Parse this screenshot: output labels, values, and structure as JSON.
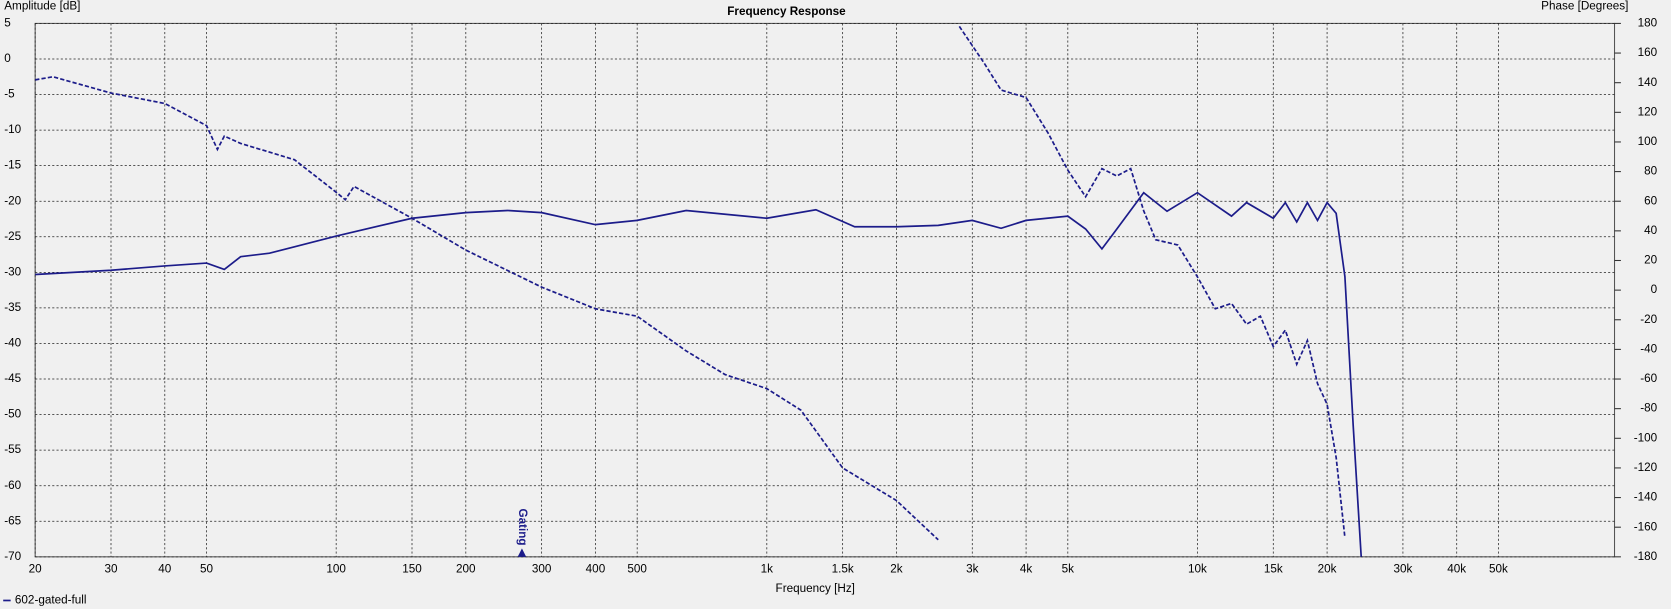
{
  "chart_data": {
    "type": "line",
    "title": "Frequency Response",
    "ylabel": "Amplitude [dB]",
    "y2label": "Phase [Degrees]",
    "xlabel": "Frequency [Hz]",
    "xscale": "log",
    "grid": true,
    "xlim": [
      20,
      93000
    ],
    "ylim": [
      -70,
      5
    ],
    "y2lim": [
      -180,
      180
    ],
    "xticks": [
      20,
      30,
      40,
      50,
      100,
      150,
      200,
      300,
      400,
      500,
      {
        "value": 1000,
        "label": "1k"
      },
      {
        "value": 1500,
        "label": "1.5k"
      },
      {
        "value": 2000,
        "label": "2k"
      },
      {
        "value": 3000,
        "label": "3k"
      },
      {
        "value": 4000,
        "label": "4k"
      },
      {
        "value": 5000,
        "label": "5k"
      },
      {
        "value": 10000,
        "label": "10k"
      },
      {
        "value": 15000,
        "label": "15k"
      },
      {
        "value": 20000,
        "label": "20k"
      },
      {
        "value": 30000,
        "label": "30k"
      },
      {
        "value": 40000,
        "label": "40k"
      },
      {
        "value": 50000,
        "label": "50k"
      }
    ],
    "yticks": [
      5,
      0,
      -5,
      -10,
      -15,
      -20,
      -25,
      -30,
      -35,
      -40,
      -45,
      -50,
      -55,
      -60,
      -65,
      -70
    ],
    "y2ticks": [
      180,
      160,
      140,
      120,
      100,
      80,
      60,
      40,
      20,
      0,
      -20,
      -40,
      -60,
      -80,
      -100,
      -120,
      -140,
      -160,
      -180
    ],
    "annotations": [
      {
        "text": "Gating",
        "x": 270
      }
    ],
    "series": [
      {
        "name": "602-gated-full",
        "color": "#1c1c8a",
        "style": "solid",
        "x": [
          20,
          30,
          40,
          50,
          55,
          60,
          70,
          80,
          100,
          150,
          200,
          250,
          300,
          400,
          500,
          650,
          1000,
          1300,
          1600,
          2000,
          2500,
          3000,
          3500,
          4000,
          5000,
          5500,
          6000,
          6500,
          7500,
          8500,
          10000,
          12000,
          13000,
          15000,
          16000,
          17000,
          18000,
          19000,
          20000,
          21000,
          22000,
          23000,
          24000
        ],
        "values": [
          -30.3,
          -29.7,
          -29.1,
          -28.7,
          -29.6,
          -27.8,
          -27.3,
          -26.4,
          -24.9,
          -22.4,
          -21.6,
          -21.3,
          -21.6,
          -23.3,
          -22.7,
          -21.3,
          -22.4,
          -21.2,
          -23.6,
          -23.6,
          -23.4,
          -22.7,
          -23.8,
          -22.7,
          -22.1,
          -23.9,
          -26.7,
          -23.9,
          -18.8,
          -21.4,
          -18.8,
          -22.1,
          -20.2,
          -22.4,
          -20.2,
          -22.9,
          -20.2,
          -22.7,
          -20.2,
          -21.7,
          -30.6,
          -51.6,
          -70
        ]
      },
      {
        "color": "#1c1c8a",
        "style": "dashed",
        "axis": "y2",
        "x": [
          20,
          22,
          30,
          40,
          50,
          53,
          55,
          60,
          80,
          100,
          105,
          110,
          150,
          200,
          300,
          400,
          500,
          650,
          800,
          1000,
          1200,
          1500,
          2000,
          2500,
          2650,
          2800,
          3200,
          3500,
          4000,
          4500,
          5000,
          5500,
          6000,
          6500,
          7000,
          7500,
          8000,
          9000,
          10000,
          11000,
          12000,
          13000,
          14000,
          15000,
          16000,
          17000,
          18000,
          19000,
          20000,
          21000,
          22000
        ],
        "values": [
          141.9,
          144,
          133,
          126,
          111,
          95,
          104,
          99,
          88,
          66,
          61,
          70,
          48.5,
          27,
          2,
          -12.6,
          -17.6,
          -41,
          -57,
          -66.5,
          -81,
          -120,
          -142,
          -168.5,
          null,
          178,
          153,
          135,
          130,
          106,
          81,
          63,
          82,
          77,
          82,
          53.5,
          34,
          30.5,
          9,
          -12.6,
          -9,
          -23,
          -17.6,
          -38,
          -27,
          -50,
          -34,
          -63,
          -77,
          -113,
          -167
        ]
      }
    ]
  }
}
